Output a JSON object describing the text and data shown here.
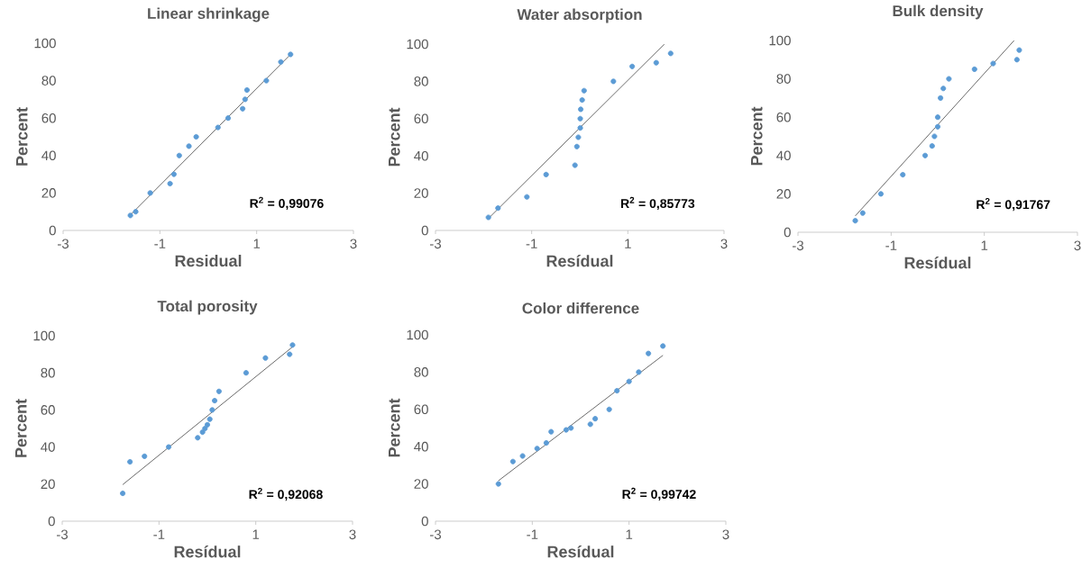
{
  "chart_data": [
    {
      "type": "scatter",
      "title": "Linear shrinkage",
      "xlabel": "Residual",
      "ylabel": "Percent",
      "xlim": [
        -3,
        3
      ],
      "xticks": [
        -3,
        -1,
        1,
        3
      ],
      "ylim": [
        0,
        100
      ],
      "yticks": [
        0,
        20,
        40,
        60,
        80,
        100
      ],
      "grid": false,
      "annotations": [
        "R$^{2}$ = 0,99076"
      ],
      "series": [
        {
          "marker": "circle",
          "color": "#5b9bd5",
          "x": [
            -1.61,
            -1.5,
            -1.2,
            -0.79,
            -0.71,
            -0.6,
            -0.4,
            -0.25,
            0.2,
            0.41,
            0.71,
            0.76,
            0.8,
            1.2,
            1.5,
            1.7
          ],
          "values": [
            8,
            10,
            20,
            25,
            30,
            40,
            45,
            50,
            55,
            60,
            65,
            70,
            75,
            80,
            90,
            94
          ]
        },
        {
          "type": "line",
          "marker": "none",
          "color": "#595959",
          "x": [
            -1.62,
            1.7
          ],
          "values": [
            8,
            94
          ]
        }
      ]
    },
    {
      "type": "scatter",
      "title": "Water absorption",
      "xlabel": "Resídual",
      "ylabel": "Percent",
      "xlim": [
        -3,
        3
      ],
      "xticks": [
        -3,
        -1,
        1,
        3
      ],
      "ylim": [
        0,
        100
      ],
      "yticks": [
        0,
        20,
        40,
        60,
        80,
        100
      ],
      "grid": false,
      "annotations": [
        "R$^{2}$ = 0,85773"
      ],
      "series": [
        {
          "marker": "circle",
          "color": "#5b9bd5",
          "x": [
            -1.9,
            -1.7,
            -1.1,
            -0.7,
            -0.1,
            -0.06,
            -0.03,
            0.01,
            0.01,
            0.02,
            0.05,
            0.09,
            0.7,
            1.09,
            1.59,
            1.89
          ],
          "values": [
            7,
            12,
            18,
            30,
            35,
            45,
            50,
            55,
            60,
            65,
            70,
            75,
            80,
            88,
            90,
            95
          ]
        },
        {
          "type": "line",
          "marker": "none",
          "color": "#595959",
          "x": [
            -1.9,
            1.76
          ],
          "values": [
            6.4,
            100
          ]
        }
      ]
    },
    {
      "type": "scatter",
      "title": "Bulk density",
      "xlabel": "Resídual",
      "ylabel": "Percent",
      "xlim": [
        -3,
        3
      ],
      "xticks": [
        -3,
        -1,
        1,
        3
      ],
      "ylim": [
        0,
        100
      ],
      "yticks": [
        0,
        20,
        40,
        60,
        80,
        100
      ],
      "grid": false,
      "annotations": [
        "R$^{2}$ = 0,91767"
      ],
      "series": [
        {
          "marker": "circle",
          "color": "#5b9bd5",
          "x": [
            -1.77,
            -1.61,
            -1.22,
            -0.75,
            -0.27,
            -0.12,
            -0.07,
            0.0,
            0.0,
            0.06,
            0.12,
            0.24,
            0.79,
            1.19,
            1.7,
            1.75
          ],
          "values": [
            6,
            10,
            20,
            30,
            40,
            45,
            50,
            55,
            60,
            70,
            75,
            80,
            85,
            88,
            90,
            95
          ]
        },
        {
          "type": "line",
          "marker": "none",
          "color": "#595959",
          "x": [
            -1.77,
            1.64
          ],
          "values": [
            8.5,
            100
          ]
        }
      ]
    },
    {
      "type": "scatter",
      "title": "Total porosity",
      "xlabel": "Resídual",
      "ylabel": "Percent",
      "xlim": [
        -3,
        3
      ],
      "xticks": [
        -3,
        -1,
        1,
        3
      ],
      "ylim": [
        0,
        100
      ],
      "yticks": [
        0,
        20,
        40,
        60,
        80,
        100
      ],
      "grid": false,
      "annotations": [
        "R$^{2}$ = 0,92068"
      ],
      "series": [
        {
          "marker": "circle",
          "color": "#5b9bd5",
          "x": [
            -1.75,
            -1.6,
            -1.3,
            -0.8,
            -0.2,
            -0.1,
            -0.05,
            0.0,
            0.05,
            0.1,
            0.15,
            0.24,
            0.8,
            1.2,
            1.7,
            1.76
          ],
          "values": [
            15,
            32,
            35,
            40,
            45,
            48,
            50,
            52,
            55,
            60,
            65,
            70,
            80,
            88,
            90,
            95
          ]
        },
        {
          "type": "line",
          "marker": "none",
          "color": "#595959",
          "x": [
            -1.75,
            1.76
          ],
          "values": [
            19.7,
            94
          ]
        }
      ]
    },
    {
      "type": "scatter",
      "title": "Color difference",
      "xlabel": "Resídual",
      "ylabel": "Percent",
      "xlim": [
        -3,
        3
      ],
      "xticks": [
        -3,
        -1,
        1,
        3
      ],
      "ylim": [
        0,
        100
      ],
      "yticks": [
        0,
        20,
        40,
        60,
        80,
        100
      ],
      "grid": false,
      "annotations": [
        "R$^{2}$ = 0,99742"
      ],
      "series": [
        {
          "marker": "circle",
          "color": "#5b9bd5",
          "x": [
            -1.7,
            -1.4,
            -1.2,
            -0.9,
            -0.71,
            -0.61,
            -0.3,
            -0.2,
            0.2,
            0.3,
            0.59,
            0.75,
            1.0,
            1.2,
            1.4,
            1.7
          ],
          "values": [
            20,
            32,
            35,
            39,
            42,
            48,
            49,
            50,
            52,
            55,
            60,
            70,
            75,
            80,
            90,
            94
          ]
        },
        {
          "type": "line",
          "marker": "none",
          "color": "#595959",
          "x": [
            -1.7,
            1.7
          ],
          "values": [
            21.7,
            89
          ]
        }
      ]
    }
  ]
}
